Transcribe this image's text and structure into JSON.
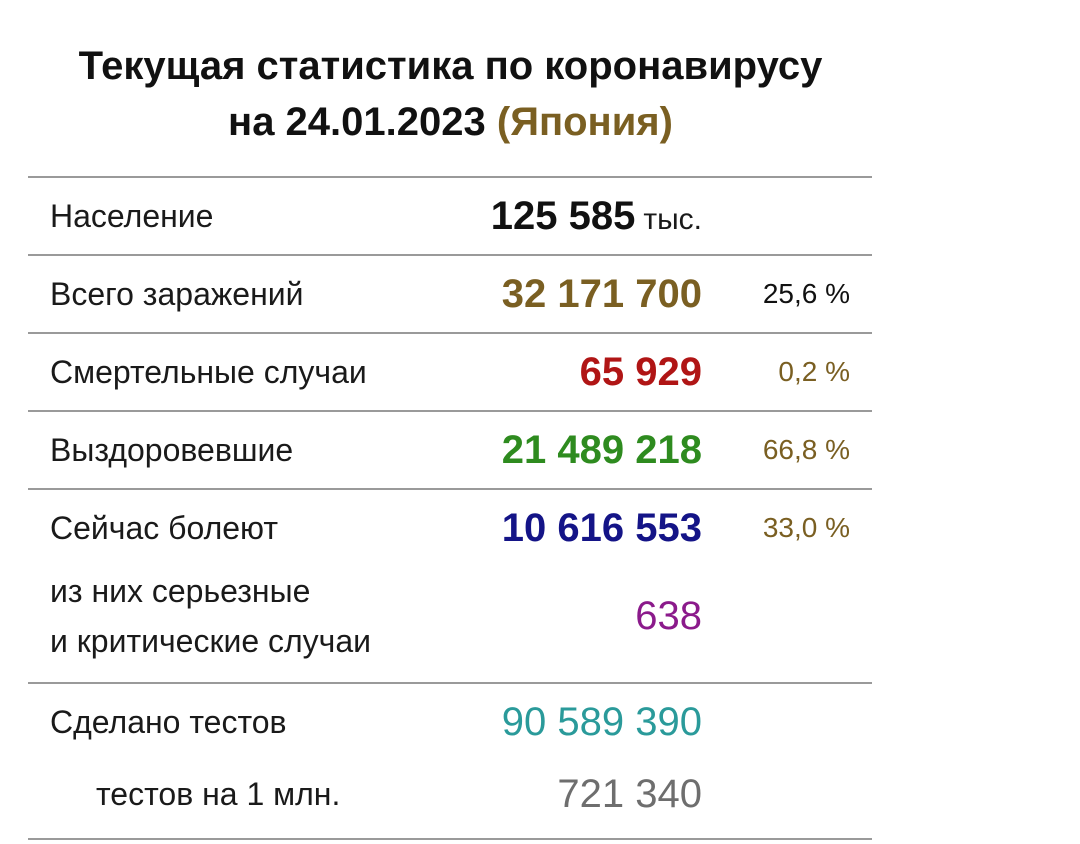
{
  "header": {
    "title_line1": "Текущая статистика по коронавирусу",
    "title_line2_prefix": "на 24.01.2023",
    "country": "(Япония)"
  },
  "rows": {
    "population": {
      "label": "Население",
      "value": "125 585",
      "unit": "тыс."
    },
    "total_cases": {
      "label": "Всего заражений",
      "value": "32 171 700",
      "percent": "25,6 %"
    },
    "deaths": {
      "label": "Смертельные случаи",
      "value": "65 929",
      "percent": "0,2 %"
    },
    "recovered": {
      "label": "Выздоровевшие",
      "value": "21 489 218",
      "percent": "66,8 %"
    },
    "active": {
      "label": "Сейчас болеют",
      "value": "10 616 553",
      "percent": "33,0 %"
    },
    "critical": {
      "label_line1": "из них серьезные",
      "label_line2": "и критические случаи",
      "value": "638"
    },
    "tests": {
      "label": "Сделано тестов",
      "value": "90 589 390"
    },
    "tests_per_million": {
      "label": "тестов на 1 млн.",
      "value": "721 340"
    }
  },
  "colors": {
    "country": "#7a5f22",
    "total_cases": "#7a5f22",
    "deaths": "#b01515",
    "recovered": "#2e8b1f",
    "active": "#141487",
    "critical": "#8b1a8b",
    "tests": "#2a9a9a",
    "tests_per_million": "#6e6e6e",
    "percent_brown": "#7a5f22"
  }
}
